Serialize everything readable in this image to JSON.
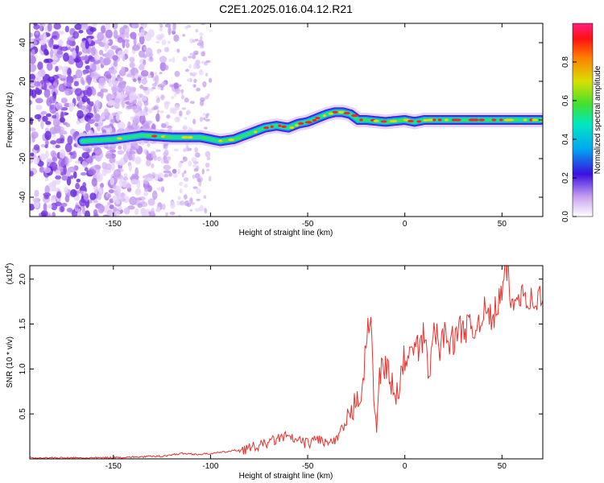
{
  "title": "C2E1.2025.016.04.12.R21",
  "chart_data": [
    {
      "type": "heatmap",
      "xlabel": "Height of straight line (km)",
      "ylabel": "Frequency (Hz)",
      "xlim": [
        -193,
        71
      ],
      "ylim": [
        -50,
        50
      ],
      "xticks": [
        -150,
        -100,
        -50,
        0,
        50
      ],
      "yticks": [
        -40,
        -20,
        0,
        20,
        40
      ],
      "colorbar": {
        "label": "Normalized spectral amplitude",
        "range": [
          0,
          1
        ],
        "ticks": [
          "0.0",
          "0.2",
          "0.4",
          "0.6",
          "0.8"
        ],
        "tick_values": [
          0,
          0.2,
          0.4,
          0.6,
          0.8
        ]
      },
      "ridge": {
        "x": [
          -166,
          -150,
          -135,
          -120,
          -105,
          -95,
          -88,
          -80,
          -72,
          -66,
          -60,
          -55,
          -50,
          -45,
          -40,
          -36,
          -32,
          -28,
          -24,
          -20,
          -10,
          0,
          5,
          10,
          20,
          30,
          40,
          50,
          60,
          70
        ],
        "y": [
          -11,
          -10,
          -8,
          -9,
          -9,
          -11,
          -10,
          -7,
          -4,
          -3,
          -4,
          -2,
          -1,
          1,
          3,
          4,
          4,
          3,
          0,
          0,
          -1,
          0,
          -1,
          0,
          0,
          0,
          0,
          0,
          0,
          0
        ]
      },
      "grid": false
    },
    {
      "type": "line",
      "xlabel": "Height of straight line (km)",
      "ylabel": "SNR (10 * v/v)",
      "y_scale_label": "(x10^4)",
      "xlim": [
        -193,
        71
      ],
      "ylim": [
        0,
        2.15
      ],
      "xticks": [
        -150,
        -100,
        -50,
        0,
        50
      ],
      "yticks": [
        0.5,
        1.0,
        1.5,
        2.0
      ],
      "ytick_labels": [
        "0.5",
        "1.0",
        "1.5",
        "2.0"
      ],
      "color": "#e8312d",
      "x": [
        -193,
        -175,
        -160,
        -140,
        -125,
        -115,
        -105,
        -95,
        -85,
        -75,
        -68,
        -62,
        -55,
        -50,
        -45,
        -40,
        -35,
        -32,
        -28,
        -25,
        -22,
        -20,
        -18,
        -17,
        -15,
        -13,
        -10,
        -7,
        -5,
        -2,
        0,
        2,
        5,
        8,
        10,
        13,
        15,
        18,
        20,
        25,
        30,
        35,
        40,
        45,
        50,
        53,
        55,
        60,
        65,
        71
      ],
      "values": [
        0.01,
        0.01,
        0.01,
        0.02,
        0.03,
        0.06,
        0.05,
        0.07,
        0.1,
        0.14,
        0.2,
        0.25,
        0.2,
        0.17,
        0.23,
        0.17,
        0.2,
        0.35,
        0.4,
        0.7,
        0.8,
        1.2,
        1.6,
        1.3,
        0.3,
        0.9,
        1.1,
        0.85,
        0.6,
        0.9,
        1.15,
        1.1,
        1.25,
        1.2,
        1.4,
        0.9,
        1.5,
        1.2,
        1.4,
        1.3,
        1.5,
        1.4,
        1.65,
        1.55,
        1.85,
        2.15,
        1.65,
        1.9,
        1.75,
        1.8
      ]
    }
  ]
}
